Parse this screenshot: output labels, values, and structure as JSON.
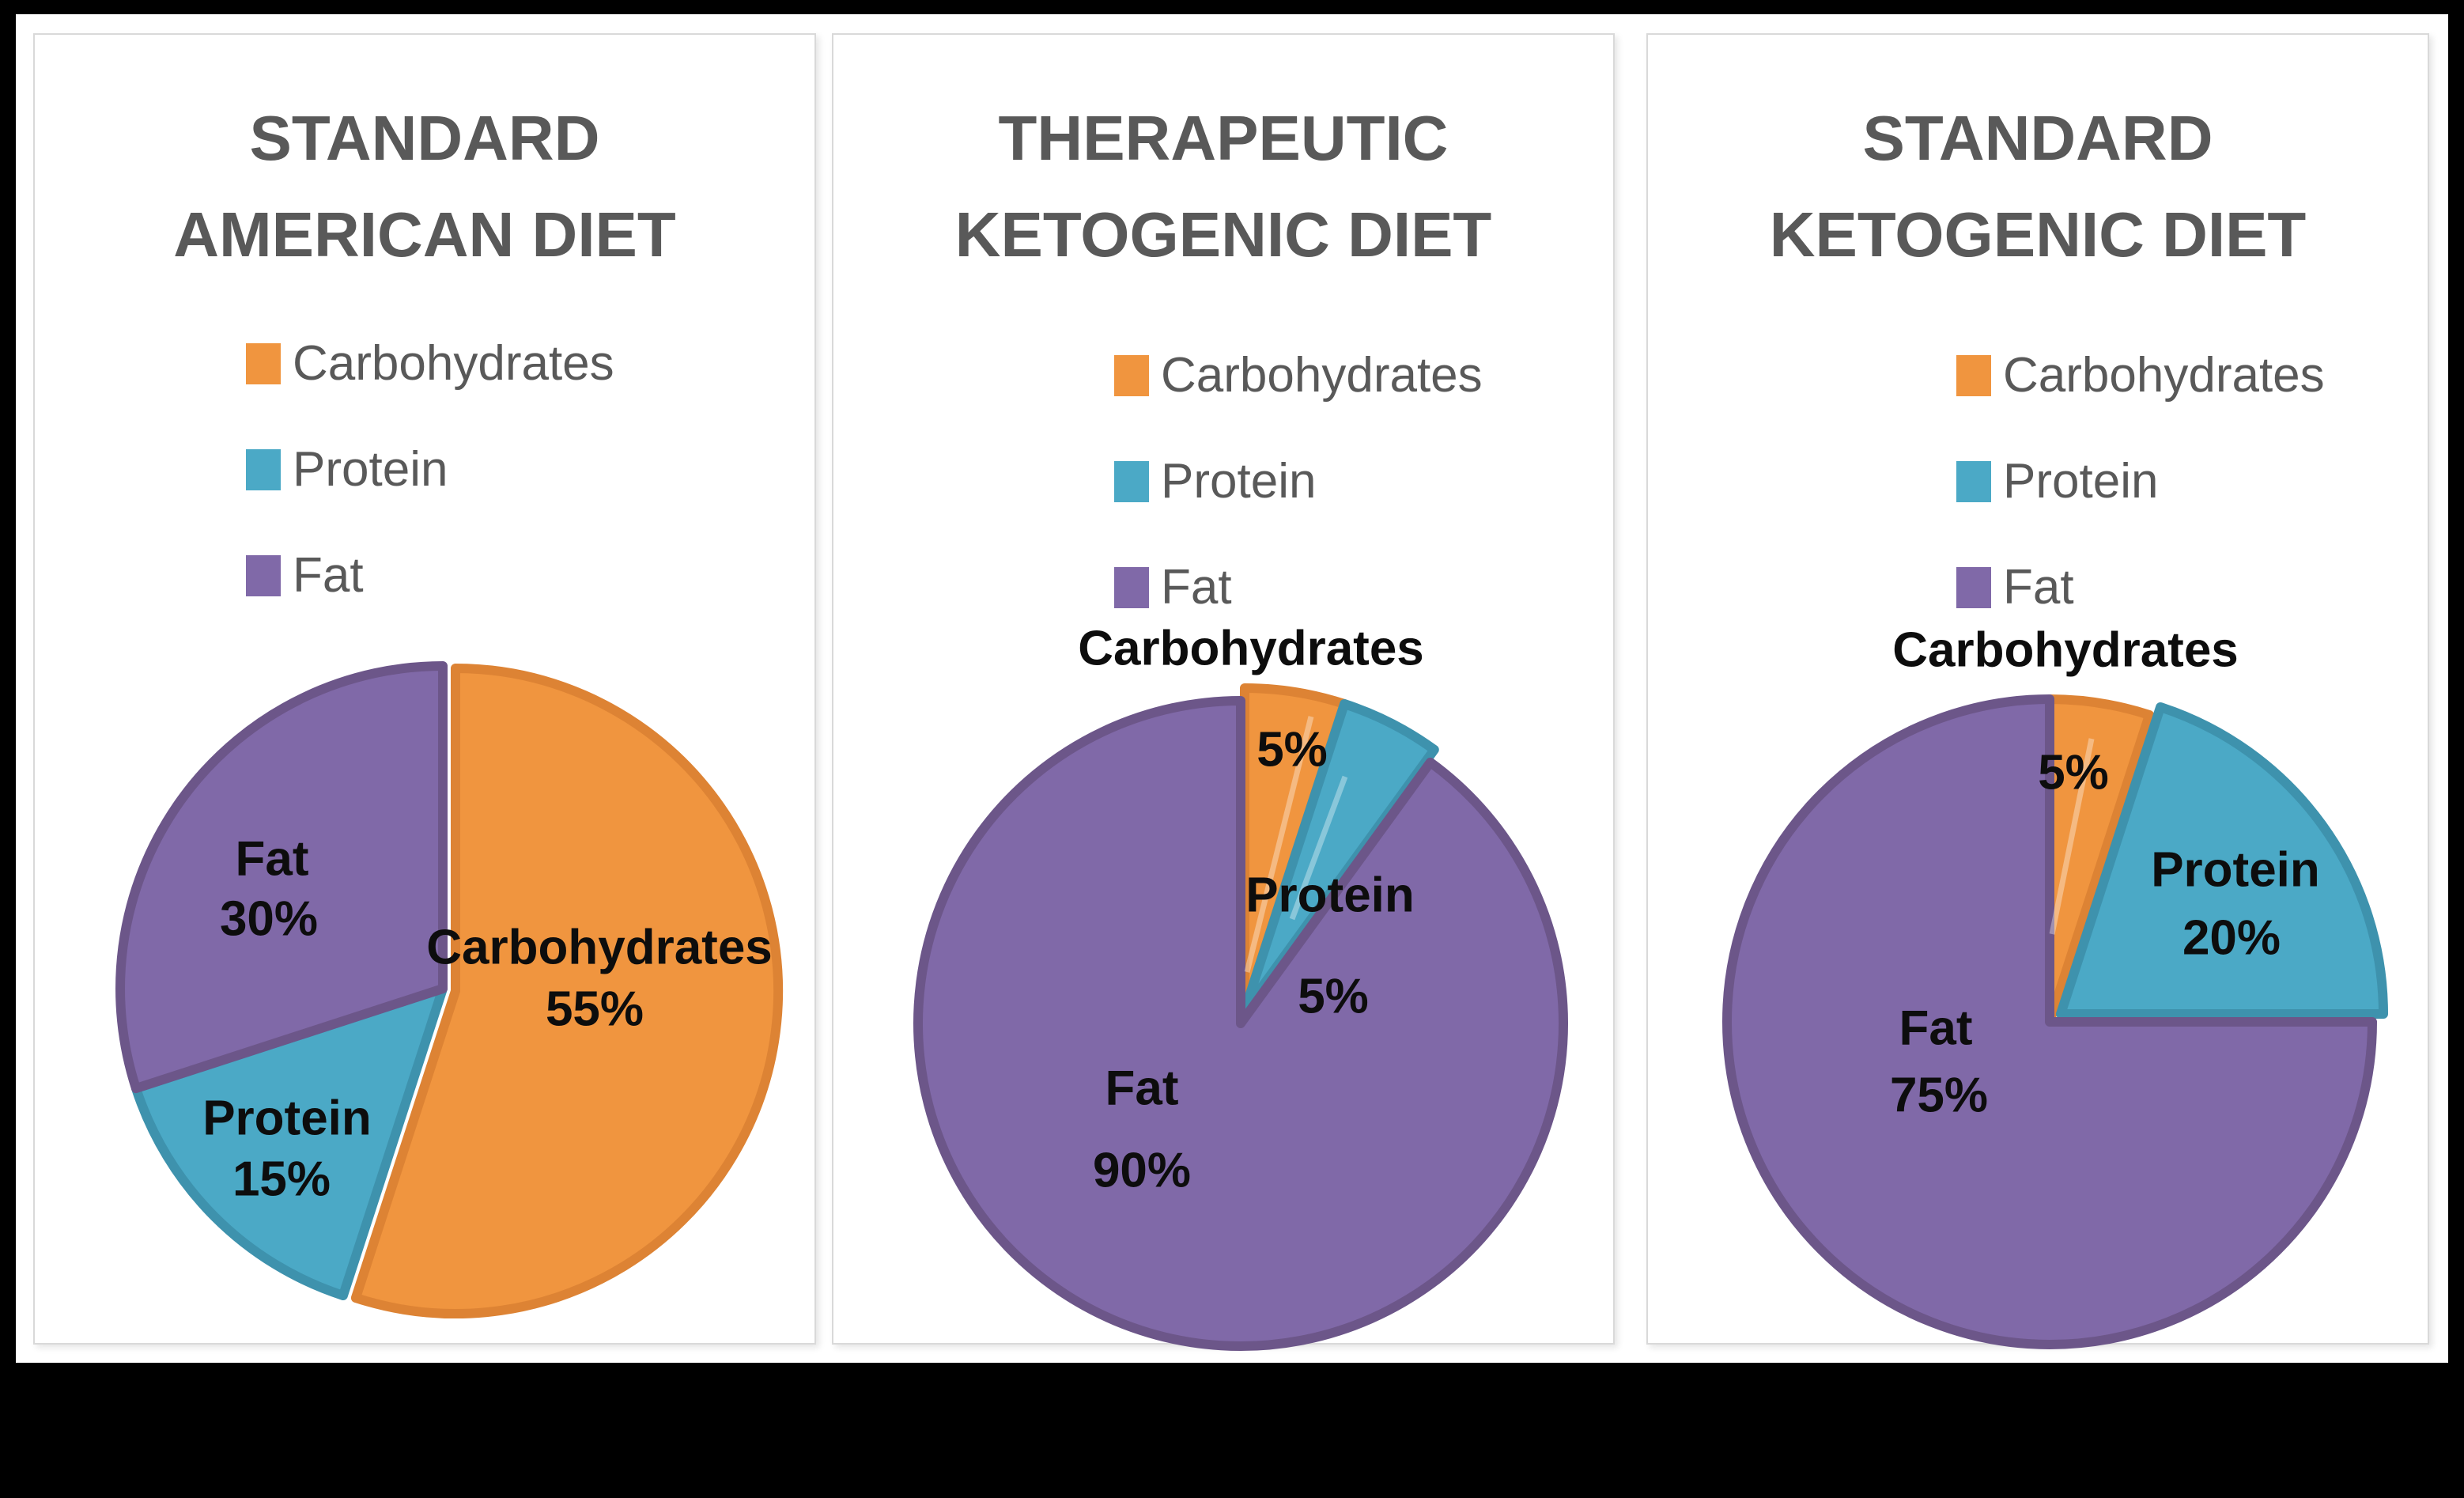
{
  "palette": {
    "frame_bg": "#000000",
    "sheet_bg": "#ffffff",
    "panel_border": "#d9d9d9",
    "title_color": "#595959",
    "legend_text_color": "#595959",
    "label_color": "#0d0d0d",
    "slice_fills": [
      "#F0953F",
      "#4BA9C6",
      "#8069A8"
    ],
    "slice_strokes": [
      "#DD8334",
      "#3E92AD",
      "#6C5689"
    ]
  },
  "legend_icons": [
    "carbohydrates-swatch",
    "protein-swatch",
    "fat-swatch"
  ],
  "chart_data": [
    {
      "type": "pie",
      "title": "STANDARD\nAMERICAN DIET",
      "categories": [
        "Carbohydrates",
        "Protein",
        "Fat"
      ],
      "values": [
        55,
        15,
        30
      ],
      "value_labels": [
        "55%",
        "15%",
        "30%"
      ],
      "start_angle": 0,
      "direction": "clockwise",
      "legend_position": "top",
      "label_placement": {
        "Carbohydrates": "inside",
        "Protein": "inside",
        "Fat": "inside"
      }
    },
    {
      "type": "pie",
      "title": "THERAPEUTIC\nKETOGENIC DIET",
      "categories": [
        "Carbohydrates",
        "Protein",
        "Fat"
      ],
      "values": [
        5,
        5,
        90
      ],
      "value_labels": [
        "5%",
        "5%",
        "90%"
      ],
      "start_angle": 0,
      "direction": "clockwise",
      "legend_position": "top",
      "label_placement": {
        "Carbohydrates": "outside-top",
        "Protein": "inside",
        "Fat": "inside"
      }
    },
    {
      "type": "pie",
      "title": "STANDARD\nKETOGENIC DIET",
      "categories": [
        "Carbohydrates",
        "Protein",
        "Fat"
      ],
      "values": [
        5,
        20,
        75
      ],
      "value_labels": [
        "5%",
        "20%",
        "75%"
      ],
      "start_angle": 0,
      "direction": "clockwise",
      "legend_position": "top",
      "label_placement": {
        "Carbohydrates": "outside-top",
        "Protein": "inside",
        "Fat": "inside"
      }
    }
  ]
}
